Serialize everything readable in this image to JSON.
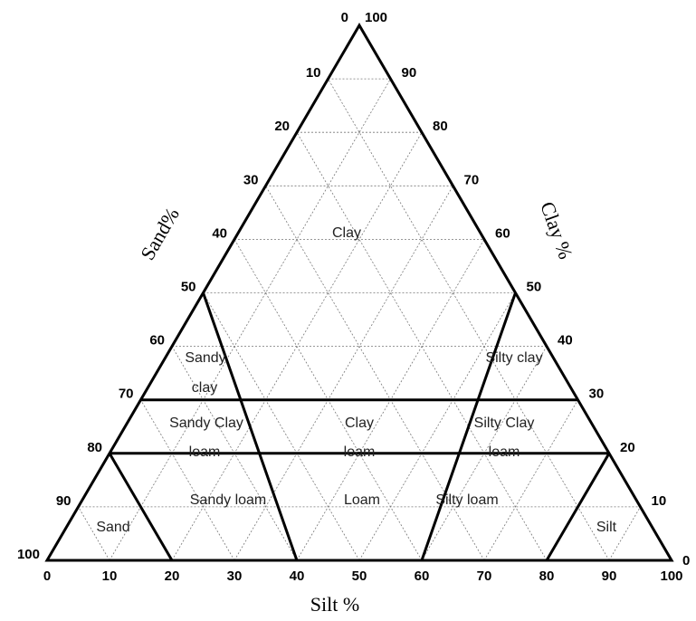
{
  "axes": {
    "silt": {
      "title": "Silt %",
      "ticks": [
        "0",
        "10",
        "20",
        "30",
        "40",
        "50",
        "60",
        "70",
        "80",
        "90",
        "100"
      ]
    },
    "sand": {
      "title": "Sand%",
      "ticks": [
        "0",
        "10",
        "20",
        "30",
        "40",
        "50",
        "60",
        "70",
        "80",
        "90",
        "100"
      ]
    },
    "clay": {
      "title": "Clay %",
      "ticks": [
        "0",
        "10",
        "20",
        "30",
        "40",
        "50",
        "60",
        "70",
        "80",
        "90",
        "100"
      ]
    }
  },
  "regions": [
    {
      "id": "clay",
      "lines": [
        "Clay"
      ]
    },
    {
      "id": "sandy-clay",
      "lines": [
        "Sandy",
        "clay"
      ]
    },
    {
      "id": "silty-clay",
      "lines": [
        "Silty clay"
      ]
    },
    {
      "id": "sandy-clay-loam",
      "lines": [
        "Sandy Clay",
        "loam"
      ]
    },
    {
      "id": "clay-loam",
      "lines": [
        "Clay",
        "loam"
      ]
    },
    {
      "id": "silty-clay-loam",
      "lines": [
        "Silty Clay",
        "loam"
      ]
    },
    {
      "id": "sand",
      "lines": [
        "Sand"
      ]
    },
    {
      "id": "sandy-loam",
      "lines": [
        "Sandy loam"
      ]
    },
    {
      "id": "loam",
      "lines": [
        "Loam"
      ]
    },
    {
      "id": "silty-loam",
      "lines": [
        "Silty loam"
      ]
    },
    {
      "id": "silt",
      "lines": [
        "Silt"
      ]
    }
  ]
}
